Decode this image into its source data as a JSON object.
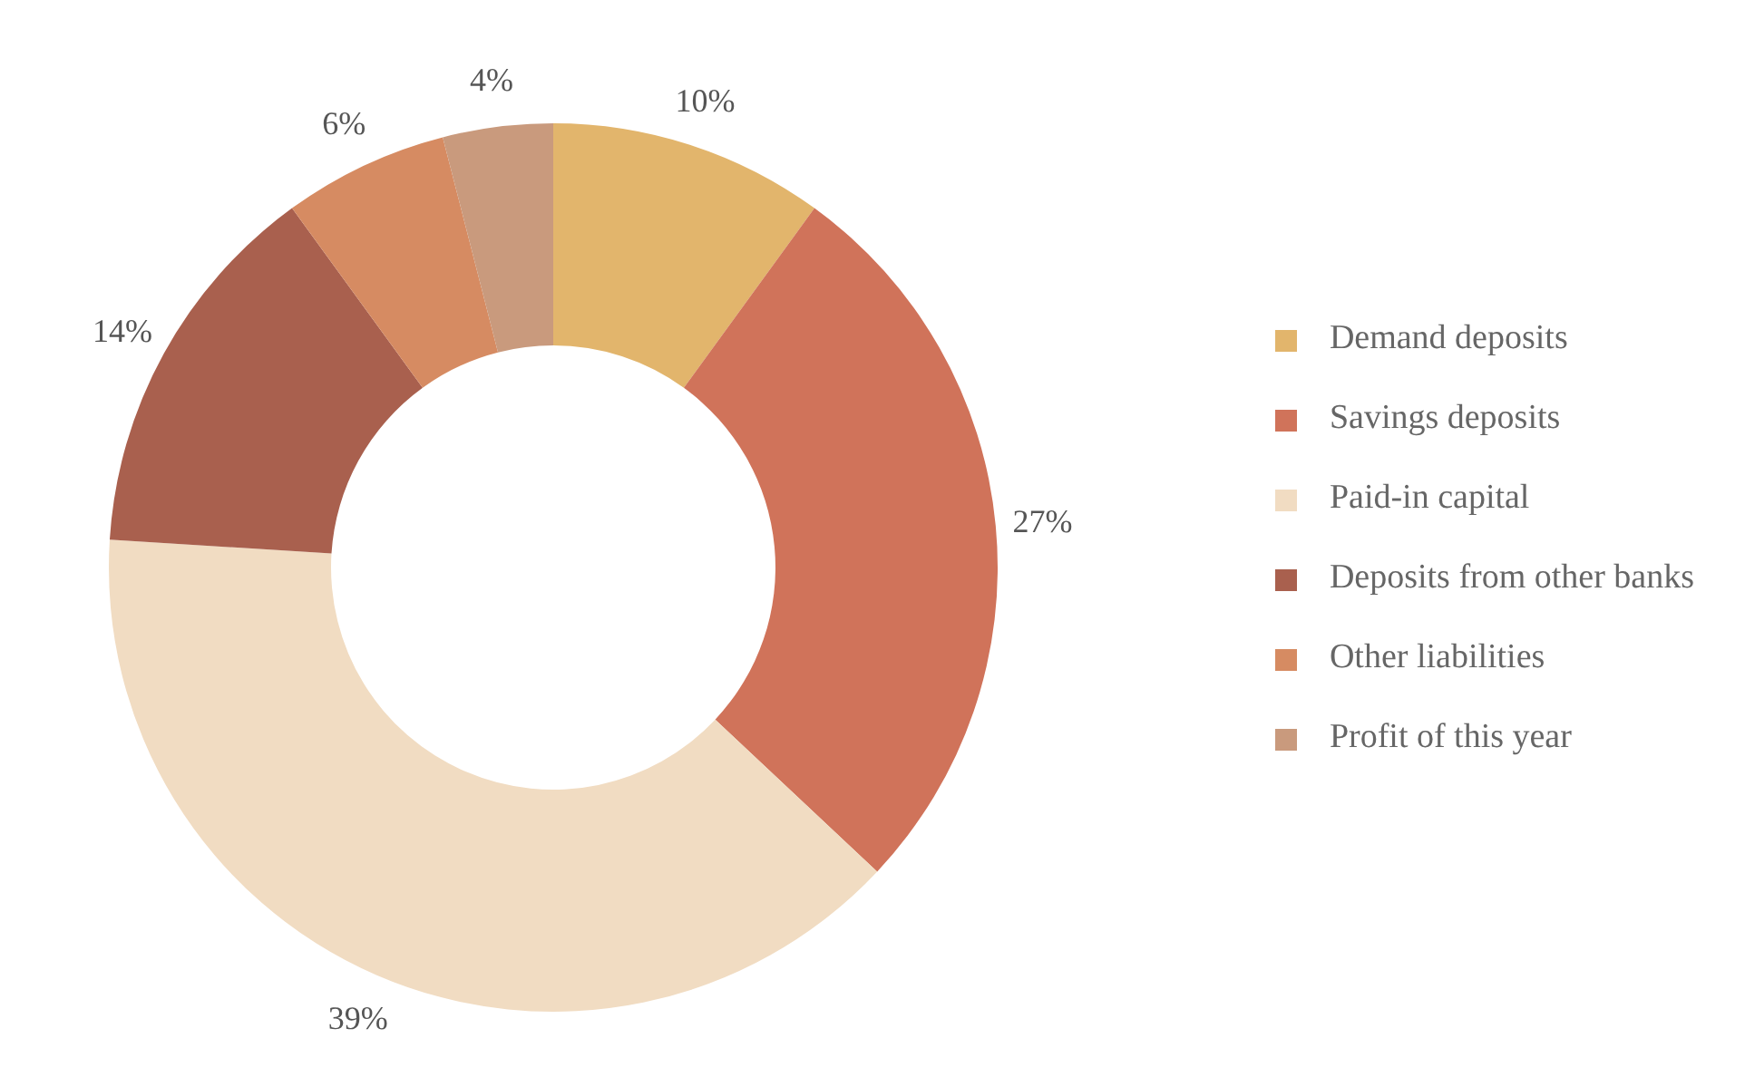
{
  "chart_data": {
    "type": "donut",
    "categories": [
      "Demand deposits",
      "Savings deposits",
      "Paid-in capital",
      "Deposits from other banks",
      "Other liabilities",
      "Profit of this year"
    ],
    "values": [
      10,
      27,
      39,
      14,
      6,
      4
    ],
    "value_labels": [
      "10%",
      "27%",
      "39%",
      "14%",
      "6%",
      "4%"
    ],
    "colors": [
      "#e2b56c",
      "#d0735a",
      "#f1dcc2",
      "#a9604e",
      "#d68b62",
      "#c99a7d"
    ],
    "legend": "right"
  }
}
